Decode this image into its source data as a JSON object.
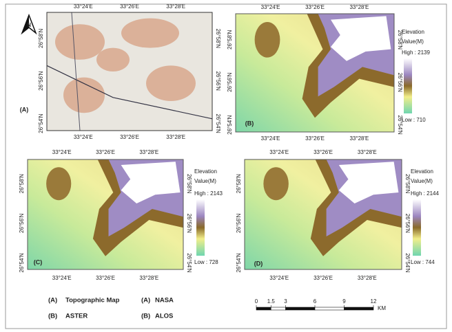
{
  "north_arrow": "N",
  "panels": [
    {
      "letter": "(A)",
      "top_ticks": [
        "33°24'E",
        "33°26'E",
        "33°28'E"
      ],
      "bottom_ticks": [
        "33°24'E",
        "33°26'E",
        "33°28'E"
      ],
      "left_ticks": [
        "26°58'N",
        "26°56'N",
        "26°54'N"
      ],
      "right_ticks": [
        "26°58'N",
        "26°56'N",
        "26°54'N"
      ]
    },
    {
      "letter": "(B)",
      "top_ticks": [
        "33°24'E",
        "33°26'E",
        "33°28'E"
      ],
      "bottom_ticks": [
        "33°24'E",
        "33°26'E",
        "33°28'E"
      ],
      "left_ticks": [
        "26°58'N",
        "26°56'N",
        "26°54'N"
      ],
      "right_ticks": [
        "26°58'N",
        "26°56'N",
        "26°54'N"
      ],
      "legend": {
        "title": [
          "Elevation",
          "Value(M)"
        ],
        "high": "High : 2139",
        "low": "Low : 710"
      }
    },
    {
      "letter": "(C)",
      "top_ticks": [
        "33°24'E",
        "33°26'E",
        "33°28'E"
      ],
      "bottom_ticks": [
        "33°24'E",
        "33°26'E",
        "33°28'E"
      ],
      "left_ticks": [
        "26°58'N",
        "26°56'N",
        "26°54'N"
      ],
      "right_ticks": [
        "26°58'N",
        "26°56'N",
        "26°54'N"
      ],
      "legend": {
        "title": [
          "Elevation",
          "Value(M)"
        ],
        "high": "High : 2143",
        "low": "Low : 728"
      }
    },
    {
      "letter": "(D)",
      "top_ticks": [
        "33°24'E",
        "33°26'E",
        "33°28'E"
      ],
      "bottom_ticks": [
        "33°24'E",
        "33°26'E",
        "33°28'E"
      ],
      "left_ticks": [
        "26°58'N",
        "26°56'N",
        "26°54'N"
      ],
      "right_ticks": [
        "26°58'N",
        "26°56'N",
        "26°54'N"
      ],
      "legend": {
        "title": [
          "Elevation",
          "Value(M)"
        ],
        "high": "High : 2144",
        "low": "Low : 744"
      }
    }
  ],
  "captions": [
    {
      "letter": "(A)",
      "text": "Topographic Map"
    },
    {
      "letter": "(B)",
      "text": "ASTER"
    },
    {
      "letter": "(A)",
      "text": "NASA"
    },
    {
      "letter": "(B)",
      "text": "ALOS"
    }
  ],
  "scale_bar": {
    "ticks": [
      0,
      1.5,
      3,
      6,
      9,
      12
    ],
    "unit": "KM"
  }
}
